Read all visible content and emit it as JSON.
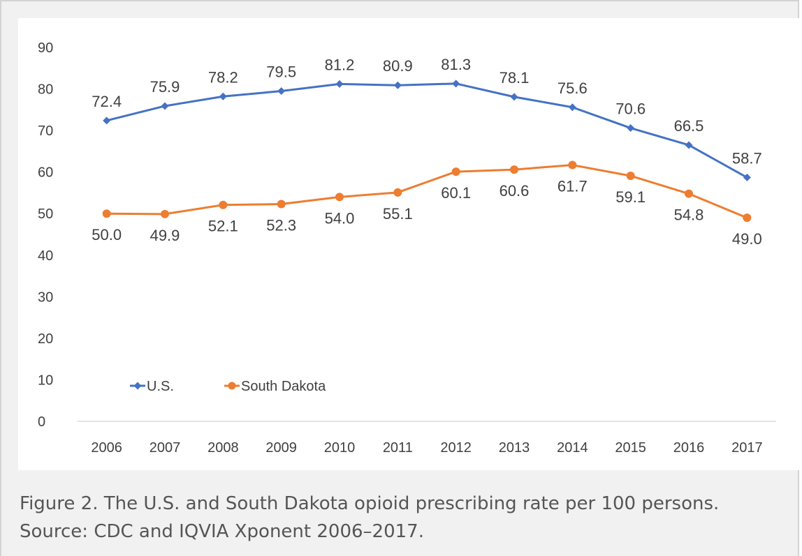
{
  "caption": "Figure 2. The U.S. and South Dakota opioid prescribing rate per 100 persons. Source: CDC and IQVIA Xponent 2006–2017.",
  "chart_data": {
    "type": "line",
    "title": "",
    "xlabel": "",
    "ylabel": "",
    "categories": [
      "2006",
      "2007",
      "2008",
      "2009",
      "2010",
      "2011",
      "2012",
      "2013",
      "2014",
      "2015",
      "2016",
      "2017"
    ],
    "ylim": [
      0,
      90
    ],
    "yticks": [
      0,
      10,
      20,
      30,
      40,
      50,
      60,
      70,
      80,
      90
    ],
    "grid": false,
    "legend_position": "bottom-left",
    "series": [
      {
        "name": "U.S.",
        "color": "#4472c4",
        "values": [
          72.4,
          75.9,
          78.2,
          79.5,
          81.2,
          80.9,
          81.3,
          78.1,
          75.6,
          70.6,
          66.5,
          58.7
        ],
        "labels": [
          "72.4",
          "75.9",
          "78.2",
          "79.5",
          "81.2",
          "80.9",
          "81.3",
          "78.1",
          "75.6",
          "70.6",
          "66.5",
          "58.7"
        ],
        "label_position": "above"
      },
      {
        "name": "South Dakota",
        "color": "#ed7d31",
        "values": [
          50.0,
          49.9,
          52.1,
          52.3,
          54.0,
          55.1,
          60.1,
          60.6,
          61.7,
          59.1,
          54.8,
          49.0
        ],
        "labels": [
          "50.0",
          "49.9",
          "52.1",
          "52.3",
          "54.0",
          "55.1",
          "60.1",
          "60.6",
          "61.7",
          "59.1",
          "54.8",
          "49.0"
        ],
        "label_position": "below"
      }
    ]
  }
}
